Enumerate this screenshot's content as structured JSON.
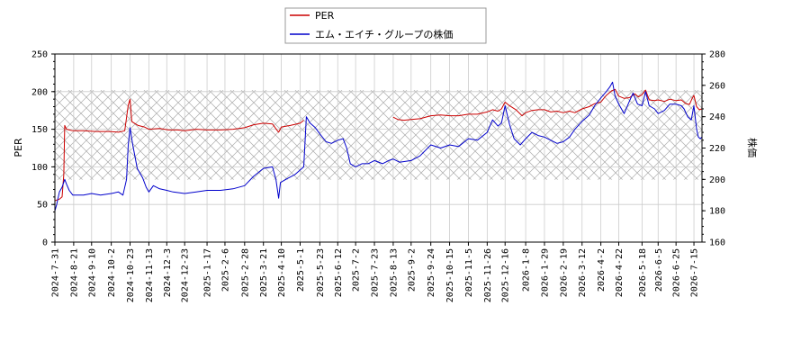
{
  "chart_data": {
    "type": "line",
    "legend": {
      "placement": "top-center",
      "entries": [
        "PER",
        "エム・エイチ・グループの株価"
      ]
    },
    "xlabel": "",
    "ylabel": "PER",
    "ylabel_right": "株価",
    "ylim_left": [
      0,
      250
    ],
    "ylim_right": [
      160,
      280
    ],
    "yticks_left": [
      0,
      50,
      100,
      150,
      200,
      250
    ],
    "yticks_right": [
      160,
      180,
      200,
      220,
      240,
      260,
      280
    ],
    "x_start": "2024-07-31",
    "x_end": "2026-07-24",
    "xticks": [
      "2024-7-31",
      "2024-8-21",
      "2024-9-10",
      "2024-10-2",
      "2024-10-23",
      "2024-11-13",
      "2024-12-3",
      "2024-12-23",
      "2025-1-17",
      "2025-2-6",
      "2025-2-28",
      "2025-3-21",
      "2025-4-10",
      "2025-5-1",
      "2025-5-23",
      "2025-6-12",
      "2025-7-2",
      "2025-7-23",
      "2025-8-13",
      "2025-9-2",
      "2025-9-24",
      "2025-10-15",
      "2025-11-5",
      "2025-11-26",
      "2025-12-16",
      "2026-1-8",
      "2026-1-29",
      "2026-2-19",
      "2026-3-12",
      "2026-4-2",
      "2026-4-22",
      "2026-5-18",
      "2026-6-5",
      "2026-6-25",
      "2026-7-15"
    ],
    "grid": true,
    "shaded_band_left": [
      83,
      202
    ],
    "series": [
      {
        "name": "PER",
        "axis": "left",
        "color": "#cc0000",
        "segments": [
          [
            [
              "2024-07-31",
              55
            ],
            [
              "2024-08-05",
              57
            ],
            [
              "2024-08-08",
              60
            ],
            [
              "2024-08-10",
              90
            ],
            [
              "2024-08-11",
              155
            ],
            [
              "2024-08-13",
              150
            ],
            [
              "2024-08-20",
              148
            ],
            [
              "2024-09-01",
              148
            ],
            [
              "2024-09-15",
              147
            ],
            [
              "2024-10-01",
              147
            ],
            [
              "2024-10-10",
              146
            ],
            [
              "2024-10-17",
              148
            ],
            [
              "2024-10-21",
              182
            ],
            [
              "2024-10-23",
              190
            ],
            [
              "2024-10-25",
              160
            ],
            [
              "2024-11-01",
              155
            ],
            [
              "2024-11-08",
              153
            ],
            [
              "2024-11-13",
              150
            ],
            [
              "2024-11-25",
              151
            ],
            [
              "2024-12-05",
              149
            ],
            [
              "2024-12-15",
              149
            ],
            [
              "2024-12-23",
              148
            ],
            [
              "2025-01-05",
              150
            ],
            [
              "2025-01-17",
              149
            ],
            [
              "2025-02-01",
              149
            ],
            [
              "2025-02-15",
              150
            ],
            [
              "2025-02-28",
              152
            ],
            [
              "2025-03-10",
              156
            ],
            [
              "2025-03-21",
              158
            ],
            [
              "2025-03-31",
              157
            ],
            [
              "2025-04-05",
              149
            ],
            [
              "2025-04-07",
              146
            ],
            [
              "2025-04-10",
              153
            ],
            [
              "2025-04-20",
              155
            ],
            [
              "2025-05-01",
              158
            ],
            [
              "2025-05-05",
              162
            ]
          ],
          [
            [
              "2025-08-13",
              166
            ],
            [
              "2025-08-18",
              163
            ],
            [
              "2025-08-25",
              162
            ],
            [
              "2025-09-02",
              163
            ],
            [
              "2025-09-12",
              164
            ],
            [
              "2025-09-24",
              168
            ],
            [
              "2025-10-05",
              169
            ],
            [
              "2025-10-15",
              168
            ],
            [
              "2025-10-25",
              168
            ],
            [
              "2025-11-05",
              170
            ],
            [
              "2025-11-15",
              170
            ],
            [
              "2025-11-26",
              173
            ],
            [
              "2025-12-02",
              176
            ],
            [
              "2025-12-08",
              174
            ],
            [
              "2025-12-12",
              177
            ],
            [
              "2025-12-16",
              186
            ],
            [
              "2025-12-20",
              182
            ],
            [
              "2025-12-28",
              176
            ],
            [
              "2026-01-04",
              168
            ],
            [
              "2026-01-08",
              172
            ],
            [
              "2026-01-15",
              175
            ],
            [
              "2026-01-22",
              176
            ],
            [
              "2026-01-29",
              176
            ],
            [
              "2026-02-05",
              173
            ],
            [
              "2026-02-12",
              174
            ],
            [
              "2026-02-19",
              172
            ],
            [
              "2026-02-26",
              174
            ],
            [
              "2026-03-04",
              172
            ],
            [
              "2026-03-12",
              177
            ],
            [
              "2026-03-20",
              180
            ],
            [
              "2026-03-26",
              184
            ],
            [
              "2026-04-02",
              186
            ],
            [
              "2026-04-08",
              195
            ],
            [
              "2026-04-14",
              201
            ],
            [
              "2026-04-18",
              203
            ],
            [
              "2026-04-22",
              194
            ],
            [
              "2026-04-28",
              191
            ],
            [
              "2026-05-04",
              192
            ],
            [
              "2026-05-10",
              197
            ],
            [
              "2026-05-14",
              193
            ],
            [
              "2026-05-18",
              196
            ],
            [
              "2026-05-22",
              202
            ],
            [
              "2026-05-26",
              189
            ],
            [
              "2026-06-01",
              188
            ],
            [
              "2026-06-05",
              189
            ],
            [
              "2026-06-12",
              187
            ],
            [
              "2026-06-18",
              190
            ],
            [
              "2026-06-25",
              188
            ],
            [
              "2026-07-01",
              189
            ],
            [
              "2026-07-06",
              184
            ],
            [
              "2026-07-10",
              183
            ],
            [
              "2026-07-13",
              191
            ],
            [
              "2026-07-15",
              195
            ],
            [
              "2026-07-18",
              180
            ],
            [
              "2026-07-21",
              176
            ],
            [
              "2026-07-24",
              177
            ]
          ]
        ]
      },
      {
        "name": "エム・エイチ・グループの株価",
        "axis": "right",
        "color": "#0000cc",
        "segments": [
          [
            [
              "2024-07-31",
              180
            ],
            [
              "2024-08-02",
              184
            ],
            [
              "2024-08-05",
              192
            ],
            [
              "2024-08-08",
              195
            ],
            [
              "2024-08-11",
              200
            ],
            [
              "2024-08-13",
              197
            ],
            [
              "2024-08-16",
              193
            ],
            [
              "2024-08-20",
              190
            ],
            [
              "2024-09-01",
              190
            ],
            [
              "2024-09-10",
              191
            ],
            [
              "2024-09-20",
              190
            ],
            [
              "2024-10-02",
              191
            ],
            [
              "2024-10-10",
              192
            ],
            [
              "2024-10-15",
              190
            ],
            [
              "2024-10-19",
              200
            ],
            [
              "2024-10-21",
              222
            ],
            [
              "2024-10-23",
              233
            ],
            [
              "2024-10-26",
              222
            ],
            [
              "2024-10-31",
              207
            ],
            [
              "2024-11-06",
              201
            ],
            [
              "2024-11-10",
              195
            ],
            [
              "2024-11-13",
              192
            ],
            [
              "2024-11-18",
              196
            ],
            [
              "2024-11-25",
              194
            ],
            [
              "2024-12-03",
              193
            ],
            [
              "2024-12-10",
              192
            ],
            [
              "2024-12-23",
              191
            ],
            [
              "2025-01-05",
              192
            ],
            [
              "2025-01-17",
              193
            ],
            [
              "2025-02-01",
              193
            ],
            [
              "2025-02-15",
              194
            ],
            [
              "2025-02-28",
              196
            ],
            [
              "2025-03-10",
              202
            ],
            [
              "2025-03-21",
              207
            ],
            [
              "2025-03-31",
              208
            ],
            [
              "2025-04-04",
              200
            ],
            [
              "2025-04-07",
              188
            ],
            [
              "2025-04-09",
              198
            ],
            [
              "2025-04-15",
              200
            ],
            [
              "2025-04-25",
              203
            ],
            [
              "2025-05-01",
              206
            ],
            [
              "2025-05-05",
              208
            ],
            [
              "2025-05-08",
              240
            ],
            [
              "2025-05-12",
              236
            ],
            [
              "2025-05-18",
              233
            ],
            [
              "2025-05-23",
              229
            ],
            [
              "2025-05-30",
              224
            ],
            [
              "2025-06-05",
              223
            ],
            [
              "2025-06-12",
              225
            ],
            [
              "2025-06-18",
              226
            ],
            [
              "2025-06-22",
              220
            ],
            [
              "2025-06-26",
              210
            ],
            [
              "2025-07-02",
              208
            ],
            [
              "2025-07-09",
              210
            ],
            [
              "2025-07-16",
              210
            ],
            [
              "2025-07-23",
              212
            ],
            [
              "2025-08-01",
              210
            ],
            [
              "2025-08-08",
              212
            ],
            [
              "2025-08-13",
              213
            ],
            [
              "2025-08-20",
              211
            ],
            [
              "2025-09-02",
              212
            ],
            [
              "2025-09-12",
              215
            ],
            [
              "2025-09-24",
              222
            ],
            [
              "2025-10-05",
              220
            ],
            [
              "2025-10-15",
              222
            ],
            [
              "2025-10-25",
              221
            ],
            [
              "2025-11-05",
              226
            ],
            [
              "2025-11-15",
              225
            ],
            [
              "2025-11-26",
              230
            ],
            [
              "2025-12-02",
              238
            ],
            [
              "2025-12-08",
              234
            ],
            [
              "2025-12-12",
              236
            ],
            [
              "2025-12-16",
              247
            ],
            [
              "2025-12-21",
              235
            ],
            [
              "2025-12-26",
              226
            ],
            [
              "2026-01-02",
              222
            ],
            [
              "2026-01-08",
              226
            ],
            [
              "2026-01-15",
              230
            ],
            [
              "2026-01-22",
              228
            ],
            [
              "2026-01-29",
              227
            ],
            [
              "2026-02-05",
              225
            ],
            [
              "2026-02-12",
              223
            ],
            [
              "2026-02-19",
              224
            ],
            [
              "2026-02-26",
              227
            ],
            [
              "2026-03-04",
              232
            ],
            [
              "2026-03-12",
              237
            ],
            [
              "2026-03-20",
              241
            ],
            [
              "2026-03-26",
              247
            ],
            [
              "2026-04-02",
              252
            ],
            [
              "2026-04-08",
              256
            ],
            [
              "2026-04-12",
              259
            ],
            [
              "2026-04-15",
              262
            ],
            [
              "2026-04-18",
              253
            ],
            [
              "2026-04-22",
              248
            ],
            [
              "2026-04-28",
              242
            ],
            [
              "2026-05-04",
              250
            ],
            [
              "2026-05-08",
              255
            ],
            [
              "2026-05-13",
              248
            ],
            [
              "2026-05-18",
              247
            ],
            [
              "2026-05-22",
              256
            ],
            [
              "2026-05-26",
              247
            ],
            [
              "2026-06-01",
              245
            ],
            [
              "2026-06-05",
              242
            ],
            [
              "2026-06-12",
              244
            ],
            [
              "2026-06-18",
              248
            ],
            [
              "2026-06-25",
              248
            ],
            [
              "2026-07-01",
              247
            ],
            [
              "2026-07-04",
              245
            ],
            [
              "2026-07-08",
              240
            ],
            [
              "2026-07-12",
              238
            ],
            [
              "2026-07-15",
              247
            ],
            [
              "2026-07-18",
              232
            ],
            [
              "2026-07-20",
              227
            ],
            [
              "2026-07-22",
              226
            ],
            [
              "2026-07-24",
              227
            ]
          ]
        ]
      }
    ]
  }
}
